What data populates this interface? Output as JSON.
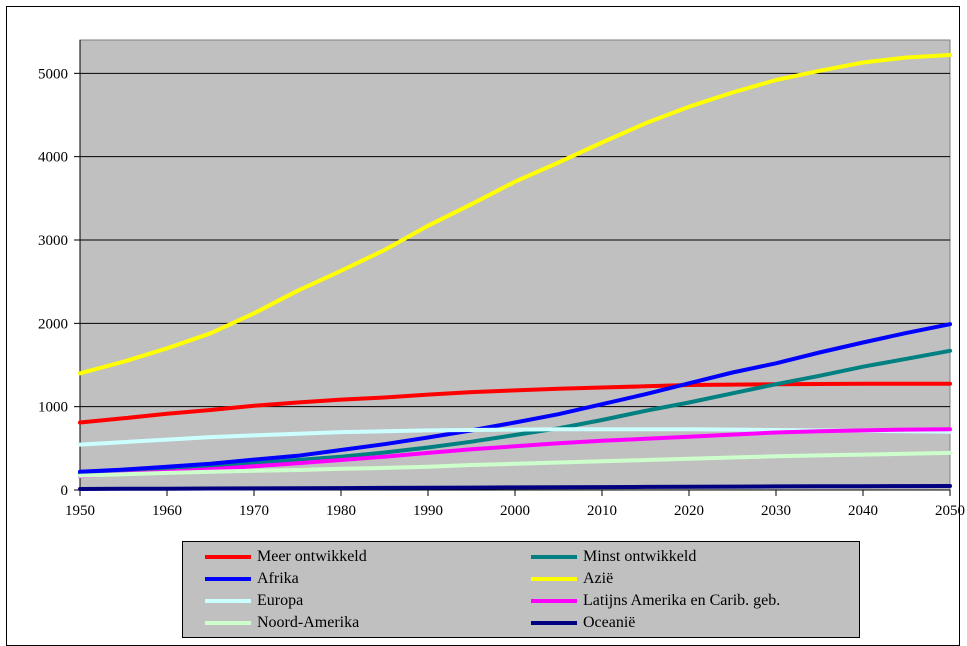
{
  "chart_data": {
    "type": "line",
    "title": "",
    "xlabel": "",
    "ylabel": "",
    "xlim": [
      1950,
      2050
    ],
    "ylim": [
      0,
      5400
    ],
    "grid": true,
    "plot_background": "#c0c0c0",
    "legend_position": "bottom",
    "x": [
      1950,
      1955,
      1960,
      1965,
      1970,
      1975,
      1980,
      1985,
      1990,
      1995,
      2000,
      2005,
      2010,
      2015,
      2020,
      2025,
      2030,
      2035,
      2040,
      2045,
      2050
    ],
    "x_ticks": [
      "1950",
      "1960",
      "1970",
      "1980",
      "1990",
      "2000",
      "2010",
      "2020",
      "2030",
      "2040",
      "2050"
    ],
    "y_ticks": [
      "0",
      "1000",
      "2000",
      "3000",
      "4000",
      "5000"
    ],
    "series": [
      {
        "name": "Meer ontwikkeld",
        "color": "#ff0000",
        "values": [
          810,
          860,
          915,
          960,
          1010,
          1050,
          1085,
          1110,
          1145,
          1175,
          1195,
          1215,
          1230,
          1245,
          1260,
          1265,
          1270,
          1272,
          1275,
          1275,
          1275
        ]
      },
      {
        "name": "Minst ontwikkeld",
        "color": "#008080",
        "values": [
          200,
          225,
          255,
          285,
          320,
          360,
          400,
          450,
          510,
          580,
          660,
          740,
          840,
          950,
          1050,
          1160,
          1270,
          1370,
          1480,
          1575,
          1670
        ]
      },
      {
        "name": "Afrika",
        "color": "#0000ff",
        "values": [
          220,
          245,
          280,
          315,
          365,
          410,
          480,
          550,
          630,
          715,
          810,
          910,
          1030,
          1150,
          1280,
          1410,
          1520,
          1650,
          1770,
          1885,
          1990
        ]
      },
      {
        "name": "Azië",
        "color": "#ffff00",
        "values": [
          1400,
          1540,
          1700,
          1880,
          2120,
          2390,
          2630,
          2880,
          3170,
          3430,
          3700,
          3930,
          4170,
          4400,
          4600,
          4770,
          4920,
          5030,
          5130,
          5190,
          5220
        ]
      },
      {
        "name": "Europa",
        "color": "#ccffff",
        "values": [
          545,
          575,
          605,
          635,
          655,
          675,
          695,
          705,
          715,
          720,
          725,
          728,
          730,
          730,
          728,
          725,
          720,
          715,
          710,
          705,
          700
        ]
      },
      {
        "name": "Latijns Amerika en Carib. geb.",
        "color": "#ff00ff",
        "values": [
          165,
          195,
          220,
          250,
          285,
          320,
          360,
          400,
          445,
          490,
          525,
          560,
          590,
          615,
          640,
          665,
          690,
          705,
          715,
          725,
          730
        ]
      },
      {
        "name": "Noord-Amerika",
        "color": "#ccffcc",
        "values": [
          170,
          190,
          205,
          220,
          230,
          240,
          255,
          265,
          280,
          300,
          315,
          330,
          345,
          360,
          375,
          390,
          405,
          415,
          425,
          435,
          445
        ]
      },
      {
        "name": "Oceanië",
        "color": "#000080",
        "values": [
          12,
          14,
          16,
          18,
          19,
          21,
          23,
          25,
          27,
          29,
          31,
          33,
          35,
          37,
          39,
          41,
          43,
          45,
          46,
          47,
          48
        ]
      }
    ]
  }
}
